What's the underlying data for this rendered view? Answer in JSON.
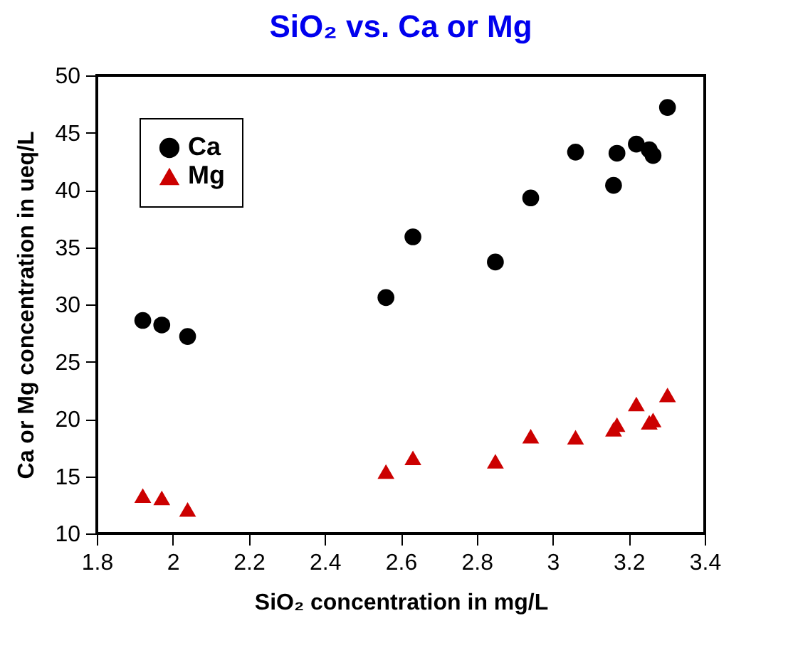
{
  "chart_data": {
    "type": "scatter",
    "title": "SiO₂ vs. Ca or Mg",
    "xlabel": "SiO₂ concentration in mg/L",
    "ylabel": "Ca or Mg concentration in ueq/L",
    "x": [
      1.921,
      1.971,
      2.039,
      2.561,
      2.632,
      2.849,
      2.942,
      3.06,
      3.16,
      3.169,
      3.22,
      3.254,
      3.264,
      3.302
    ],
    "series": [
      {
        "name": "Ca",
        "color": "#000000",
        "marker": "circle",
        "values": [
          28.6,
          28.2,
          27.2,
          30.6,
          35.9,
          33.7,
          39.3,
          43.3,
          40.4,
          43.2,
          44.0,
          43.5,
          43.0,
          47.2
        ]
      },
      {
        "name": "Mg",
        "color": "#cc0000",
        "marker": "triangle",
        "values": [
          13.3,
          13.1,
          12.1,
          15.4,
          16.6,
          16.3,
          18.5,
          18.4,
          19.1,
          19.5,
          21.3,
          19.7,
          19.9,
          22.1
        ]
      }
    ],
    "xlim": [
      1.8,
      3.4
    ],
    "xticks": [
      1.8,
      2,
      2.2,
      2.4,
      2.6,
      2.8,
      3,
      3.2,
      3.4
    ],
    "ylim": [
      10,
      50
    ],
    "yticks": [
      10,
      15,
      20,
      25,
      30,
      35,
      40,
      45,
      50
    ],
    "grid": false,
    "legend": "top left"
  }
}
